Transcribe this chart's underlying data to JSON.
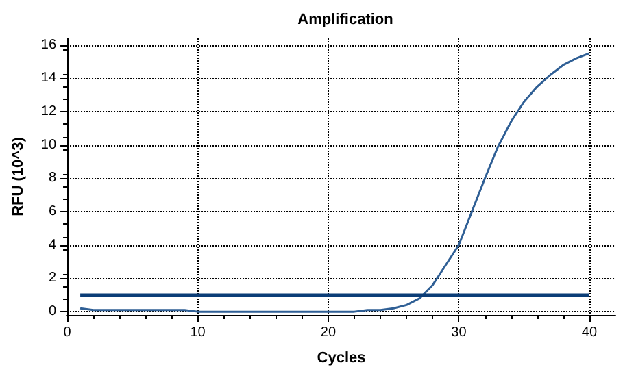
{
  "chart_data": {
    "type": "line",
    "title": "Amplification",
    "xlabel": "Cycles",
    "ylabel": "RFU (10^3)",
    "x": [
      1,
      2,
      3,
      4,
      5,
      6,
      7,
      8,
      9,
      10,
      11,
      12,
      13,
      14,
      15,
      16,
      17,
      18,
      19,
      20,
      21,
      22,
      23,
      24,
      25,
      26,
      27,
      28,
      29,
      30,
      31,
      32,
      33,
      34,
      35,
      36,
      37,
      38,
      39,
      40
    ],
    "series": [
      {
        "color": "#2f5f95",
        "values": [
          0.2,
          0.1,
          0.1,
          0.1,
          0.1,
          0.1,
          0.1,
          0.1,
          0.1,
          0.0,
          0.0,
          0.0,
          0.0,
          0.0,
          0.0,
          0.0,
          0.0,
          0.0,
          0.0,
          0.0,
          0.0,
          0.0,
          0.1,
          0.1,
          0.2,
          0.4,
          0.8,
          1.6,
          2.8,
          4.0,
          6.0,
          8.0,
          9.9,
          11.4,
          12.6,
          13.5,
          14.2,
          14.8,
          15.2,
          15.5
        ]
      }
    ],
    "ref_lines": [
      {
        "axis": "y",
        "value": 1,
        "color": "#0b3d77"
      }
    ],
    "xlim": [
      0,
      42
    ],
    "xticks": [
      0,
      10,
      20,
      30,
      40
    ],
    "ylim": [
      -0.2,
      16.4
    ],
    "yticks": [
      0,
      2,
      4,
      6,
      8,
      10,
      12,
      14,
      16
    ],
    "grid": true,
    "marker": "none",
    "line_style": "solid"
  }
}
